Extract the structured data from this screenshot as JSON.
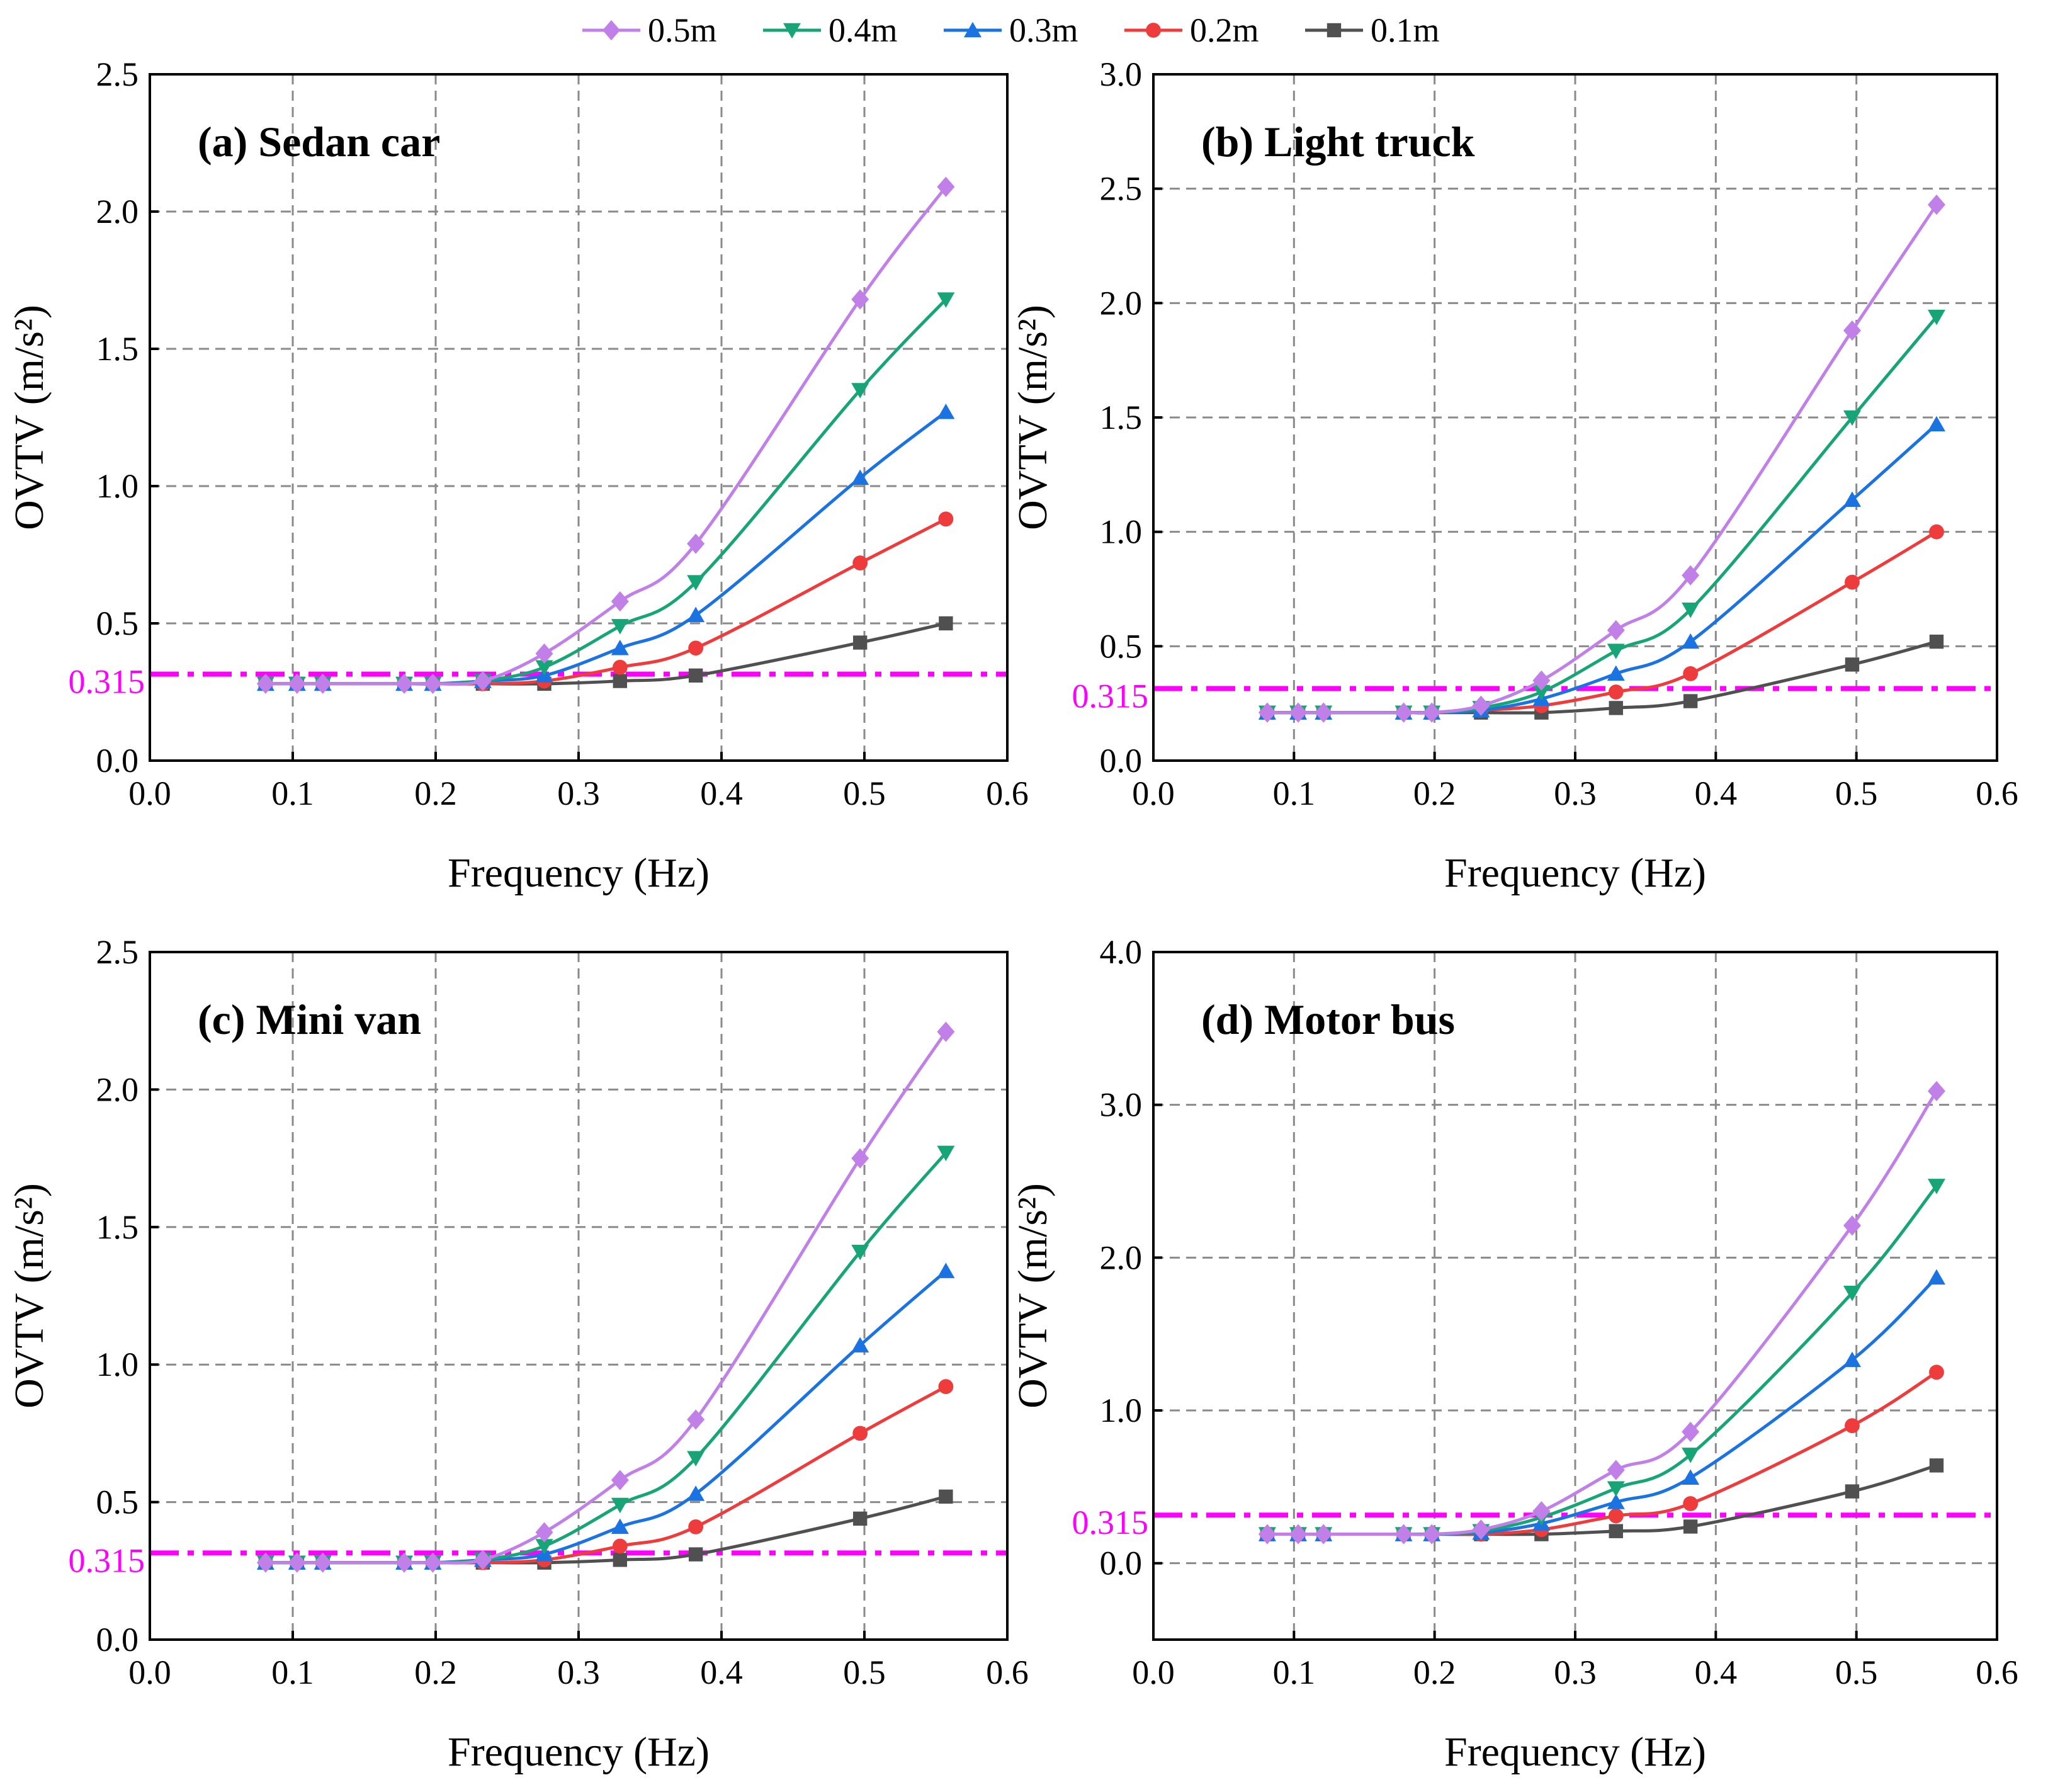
{
  "series_styles": [
    {
      "name": "0.5m",
      "color": "#c080e8",
      "marker": "diamond"
    },
    {
      "name": "0.4m",
      "color": "#17a577",
      "marker": "triangle-down"
    },
    {
      "name": "0.3m",
      "color": "#1a73e0",
      "marker": "triangle-up"
    },
    {
      "name": "0.2m",
      "color": "#ee3b3b",
      "marker": "circle"
    },
    {
      "name": "0.1m",
      "color": "#505050",
      "marker": "square"
    }
  ],
  "threshold_color": "#ff00ff",
  "chart_data": [
    {
      "type": "line",
      "title": "(a) Sedan car",
      "xlabel": "Frequency (Hz)",
      "ylabel": "OVTV (m/s²)",
      "xlim": [
        0.0,
        0.6
      ],
      "ylim": [
        0.0,
        2.5
      ],
      "xticks": [
        "0.0",
        "0.1",
        "0.2",
        "0.3",
        "0.4",
        "0.5",
        "0.6"
      ],
      "yticks": [
        "0.0",
        "0.5",
        "1.0",
        "1.5",
        "2.0",
        "2.5"
      ],
      "ytick_values": [
        0,
        0.5,
        1.0,
        1.5,
        2.0,
        2.5
      ],
      "grid": true,
      "threshold": {
        "value": 0.315,
        "label": "0.315"
      },
      "x": [
        0.081,
        0.103,
        0.121,
        0.178,
        0.198,
        0.233,
        0.276,
        0.329,
        0.382,
        0.497,
        0.557
      ],
      "series": [
        {
          "name": "0.5m",
          "values": [
            0.28,
            0.28,
            0.28,
            0.28,
            0.28,
            0.29,
            0.39,
            0.58,
            0.79,
            1.68,
            2.09
          ]
        },
        {
          "name": "0.4m",
          "values": [
            0.28,
            0.28,
            0.28,
            0.28,
            0.28,
            0.29,
            0.34,
            0.49,
            0.65,
            1.35,
            1.68
          ]
        },
        {
          "name": "0.3m",
          "values": [
            0.28,
            0.28,
            0.28,
            0.28,
            0.28,
            0.29,
            0.31,
            0.41,
            0.53,
            1.03,
            1.27
          ]
        },
        {
          "name": "0.2m",
          "values": [
            0.28,
            0.28,
            0.28,
            0.28,
            0.28,
            0.28,
            0.29,
            0.34,
            0.41,
            0.72,
            0.88
          ]
        },
        {
          "name": "0.1m",
          "values": [
            0.28,
            0.28,
            0.28,
            0.28,
            0.28,
            0.28,
            0.28,
            0.29,
            0.31,
            0.43,
            0.5
          ]
        }
      ]
    },
    {
      "type": "line",
      "title": "(b) Light truck",
      "xlabel": "Frequency (Hz)",
      "ylabel": "OVTV (m/s²)",
      "xlim": [
        0.0,
        0.6
      ],
      "ylim": [
        0.0,
        3.0
      ],
      "xticks": [
        "0.0",
        "0.1",
        "0.2",
        "0.3",
        "0.4",
        "0.5",
        "0.6"
      ],
      "yticks": [
        "0.0",
        "0.5",
        "1.0",
        "1.5",
        "2.0",
        "2.5",
        "3.0"
      ],
      "ytick_values": [
        0,
        0.5,
        1.0,
        1.5,
        2.0,
        2.5,
        3.0
      ],
      "grid": true,
      "threshold": {
        "value": 0.315,
        "label": "0.315"
      },
      "x": [
        0.081,
        0.103,
        0.121,
        0.178,
        0.198,
        0.233,
        0.276,
        0.329,
        0.382,
        0.497,
        0.557
      ],
      "series": [
        {
          "name": "0.5m",
          "values": [
            0.21,
            0.21,
            0.21,
            0.21,
            0.21,
            0.24,
            0.35,
            0.57,
            0.81,
            1.88,
            2.43
          ]
        },
        {
          "name": "0.4m",
          "values": [
            0.21,
            0.21,
            0.21,
            0.21,
            0.21,
            0.23,
            0.3,
            0.48,
            0.66,
            1.5,
            1.94
          ]
        },
        {
          "name": "0.3m",
          "values": [
            0.21,
            0.21,
            0.21,
            0.21,
            0.21,
            0.22,
            0.27,
            0.38,
            0.52,
            1.14,
            1.47
          ]
        },
        {
          "name": "0.2m",
          "values": [
            0.21,
            0.21,
            0.21,
            0.21,
            0.21,
            0.22,
            0.24,
            0.3,
            0.38,
            0.78,
            1.0
          ]
        },
        {
          "name": "0.1m",
          "values": [
            0.21,
            0.21,
            0.21,
            0.21,
            0.21,
            0.21,
            0.21,
            0.23,
            0.26,
            0.42,
            0.52
          ]
        }
      ]
    },
    {
      "type": "line",
      "title": "(c) Mini van",
      "xlabel": "Frequency (Hz)",
      "ylabel": "OVTV (m/s²)",
      "xlim": [
        0.0,
        0.6
      ],
      "ylim": [
        0.0,
        2.5
      ],
      "xticks": [
        "0.0",
        "0.1",
        "0.2",
        "0.3",
        "0.4",
        "0.5",
        "0.6"
      ],
      "yticks": [
        "0.0",
        "0.5",
        "1.0",
        "1.5",
        "2.0",
        "2.5"
      ],
      "ytick_values": [
        0,
        0.5,
        1.0,
        1.5,
        2.0,
        2.5
      ],
      "grid": true,
      "threshold": {
        "value": 0.315,
        "label": "0.315"
      },
      "x": [
        0.081,
        0.103,
        0.121,
        0.178,
        0.198,
        0.233,
        0.276,
        0.329,
        0.382,
        0.497,
        0.557
      ],
      "series": [
        {
          "name": "0.5m",
          "values": [
            0.28,
            0.28,
            0.28,
            0.28,
            0.28,
            0.29,
            0.39,
            0.58,
            0.8,
            1.75,
            2.21
          ]
        },
        {
          "name": "0.4m",
          "values": [
            0.28,
            0.28,
            0.28,
            0.28,
            0.28,
            0.29,
            0.34,
            0.49,
            0.66,
            1.41,
            1.77
          ]
        },
        {
          "name": "0.3m",
          "values": [
            0.28,
            0.28,
            0.28,
            0.28,
            0.28,
            0.29,
            0.31,
            0.41,
            0.53,
            1.07,
            1.34
          ]
        },
        {
          "name": "0.2m",
          "values": [
            0.28,
            0.28,
            0.28,
            0.28,
            0.28,
            0.28,
            0.29,
            0.34,
            0.41,
            0.75,
            0.92
          ]
        },
        {
          "name": "0.1m",
          "values": [
            0.28,
            0.28,
            0.28,
            0.28,
            0.28,
            0.28,
            0.28,
            0.29,
            0.31,
            0.44,
            0.52
          ]
        }
      ]
    },
    {
      "type": "line",
      "title": "(d) Motor bus",
      "xlabel": "Frequency (Hz)",
      "ylabel": "OVTV (m/s²)",
      "xlim": [
        0.0,
        0.6
      ],
      "ylim": [
        -0.5,
        4.0
      ],
      "xticks": [
        "0.0",
        "0.1",
        "0.2",
        "0.3",
        "0.4",
        "0.5",
        "0.6"
      ],
      "yticks": [
        "0.0",
        "1.0",
        "2.0",
        "3.0",
        "4.0"
      ],
      "ytick_values": [
        0,
        1.0,
        2.0,
        3.0,
        4.0
      ],
      "grid": true,
      "threshold": {
        "value": 0.315,
        "label": "0.315"
      },
      "x": [
        0.081,
        0.103,
        0.121,
        0.178,
        0.198,
        0.233,
        0.276,
        0.329,
        0.382,
        0.497,
        0.557
      ],
      "series": [
        {
          "name": "0.5m",
          "values": [
            0.19,
            0.19,
            0.19,
            0.19,
            0.19,
            0.22,
            0.34,
            0.61,
            0.86,
            2.21,
            3.09
          ]
        },
        {
          "name": "0.4m",
          "values": [
            0.19,
            0.19,
            0.19,
            0.19,
            0.19,
            0.21,
            0.3,
            0.49,
            0.71,
            1.77,
            2.47
          ]
        },
        {
          "name": "0.3m",
          "values": [
            0.19,
            0.19,
            0.19,
            0.19,
            0.19,
            0.2,
            0.26,
            0.4,
            0.56,
            1.33,
            1.87
          ]
        },
        {
          "name": "0.2m",
          "values": [
            0.19,
            0.19,
            0.19,
            0.19,
            0.19,
            0.19,
            0.22,
            0.31,
            0.39,
            0.9,
            1.25
          ]
        },
        {
          "name": "0.1m",
          "values": [
            0.19,
            0.19,
            0.19,
            0.19,
            0.19,
            0.19,
            0.19,
            0.21,
            0.24,
            0.47,
            0.64
          ]
        }
      ]
    }
  ]
}
